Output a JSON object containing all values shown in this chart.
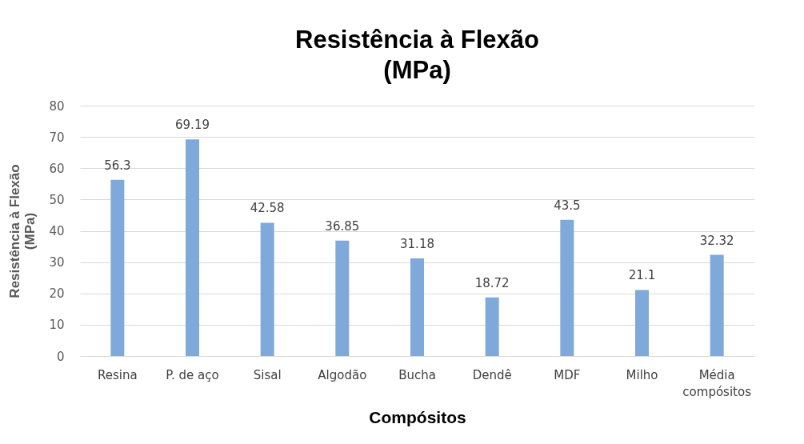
{
  "chart_data": {
    "type": "bar",
    "title": "Resistência à Flexão\n(MPa)",
    "xlabel": "Compósitos",
    "ylabel": "Resistência à Flexão\n(MPa)",
    "categories": [
      "Resina",
      "P. de aço",
      "Sisal",
      "Algodão",
      "Bucha",
      "Dendê",
      "MDF",
      "Milho",
      "Média compósitos"
    ],
    "values": [
      56.3,
      69.19,
      42.58,
      36.85,
      31.18,
      18.72,
      43.5,
      21.1,
      32.32
    ],
    "color": "#80a9db",
    "ylim": [
      0,
      80
    ],
    "yticks": [
      0,
      10,
      20,
      30,
      40,
      50,
      60,
      70,
      80
    ],
    "grid": "y",
    "data_labels": true
  }
}
